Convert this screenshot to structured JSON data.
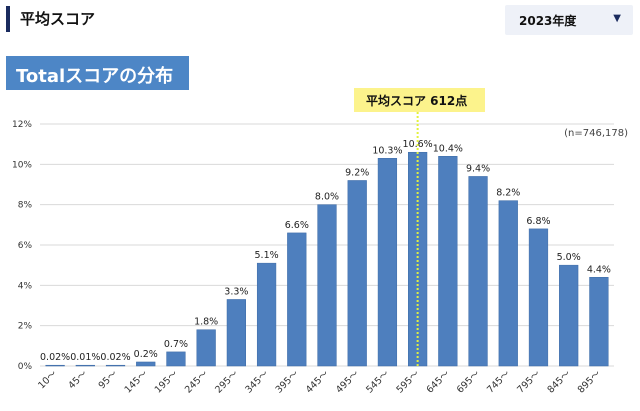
{
  "header": {
    "title": "平均スコア"
  },
  "year_select": {
    "selected": "2023年度",
    "caret": "▼"
  },
  "section": {
    "title": "Totalスコアの分布"
  },
  "average_badge": {
    "text": "平均スコア 612点"
  },
  "note": "(n=746,178)",
  "colors": {
    "bar": "#4e7fbe",
    "bar_edge": "#3c6aa6",
    "grid": "#d9d9d9",
    "avg_line": "#e3f13c",
    "banner": "#4d86c6",
    "badge": "#fcf38c"
  },
  "chart_data": {
    "type": "bar",
    "categories": [
      "10～",
      "45～",
      "95～",
      "145～",
      "195～",
      "245～",
      "295～",
      "345～",
      "395～",
      "445～",
      "495～",
      "545～",
      "595～",
      "645～",
      "695～",
      "745～",
      "795～",
      "845～",
      "895～"
    ],
    "values": [
      0.02,
      0.01,
      0.02,
      0.2,
      0.7,
      1.8,
      3.3,
      5.1,
      6.6,
      8.0,
      9.2,
      10.3,
      10.6,
      10.4,
      9.4,
      8.2,
      6.8,
      5.0,
      4.4
    ],
    "labels": [
      "0.02%",
      "0.01%",
      "0.02%",
      "0.2%",
      "0.7%",
      "1.8%",
      "3.3%",
      "5.1%",
      "6.6%",
      "8.0%",
      "9.2%",
      "10.3%",
      "10.6%",
      "10.4%",
      "9.4%",
      "8.2%",
      "6.8%",
      "5.0%",
      "4.4%"
    ],
    "ylim": [
      0,
      12
    ],
    "yticks": [
      0,
      2,
      4,
      6,
      8,
      10,
      12
    ],
    "ytick_labels": [
      "0%",
      "2%",
      "4%",
      "6%",
      "8%",
      "10%",
      "12%"
    ],
    "grid": true,
    "average_category_index": 12
  }
}
